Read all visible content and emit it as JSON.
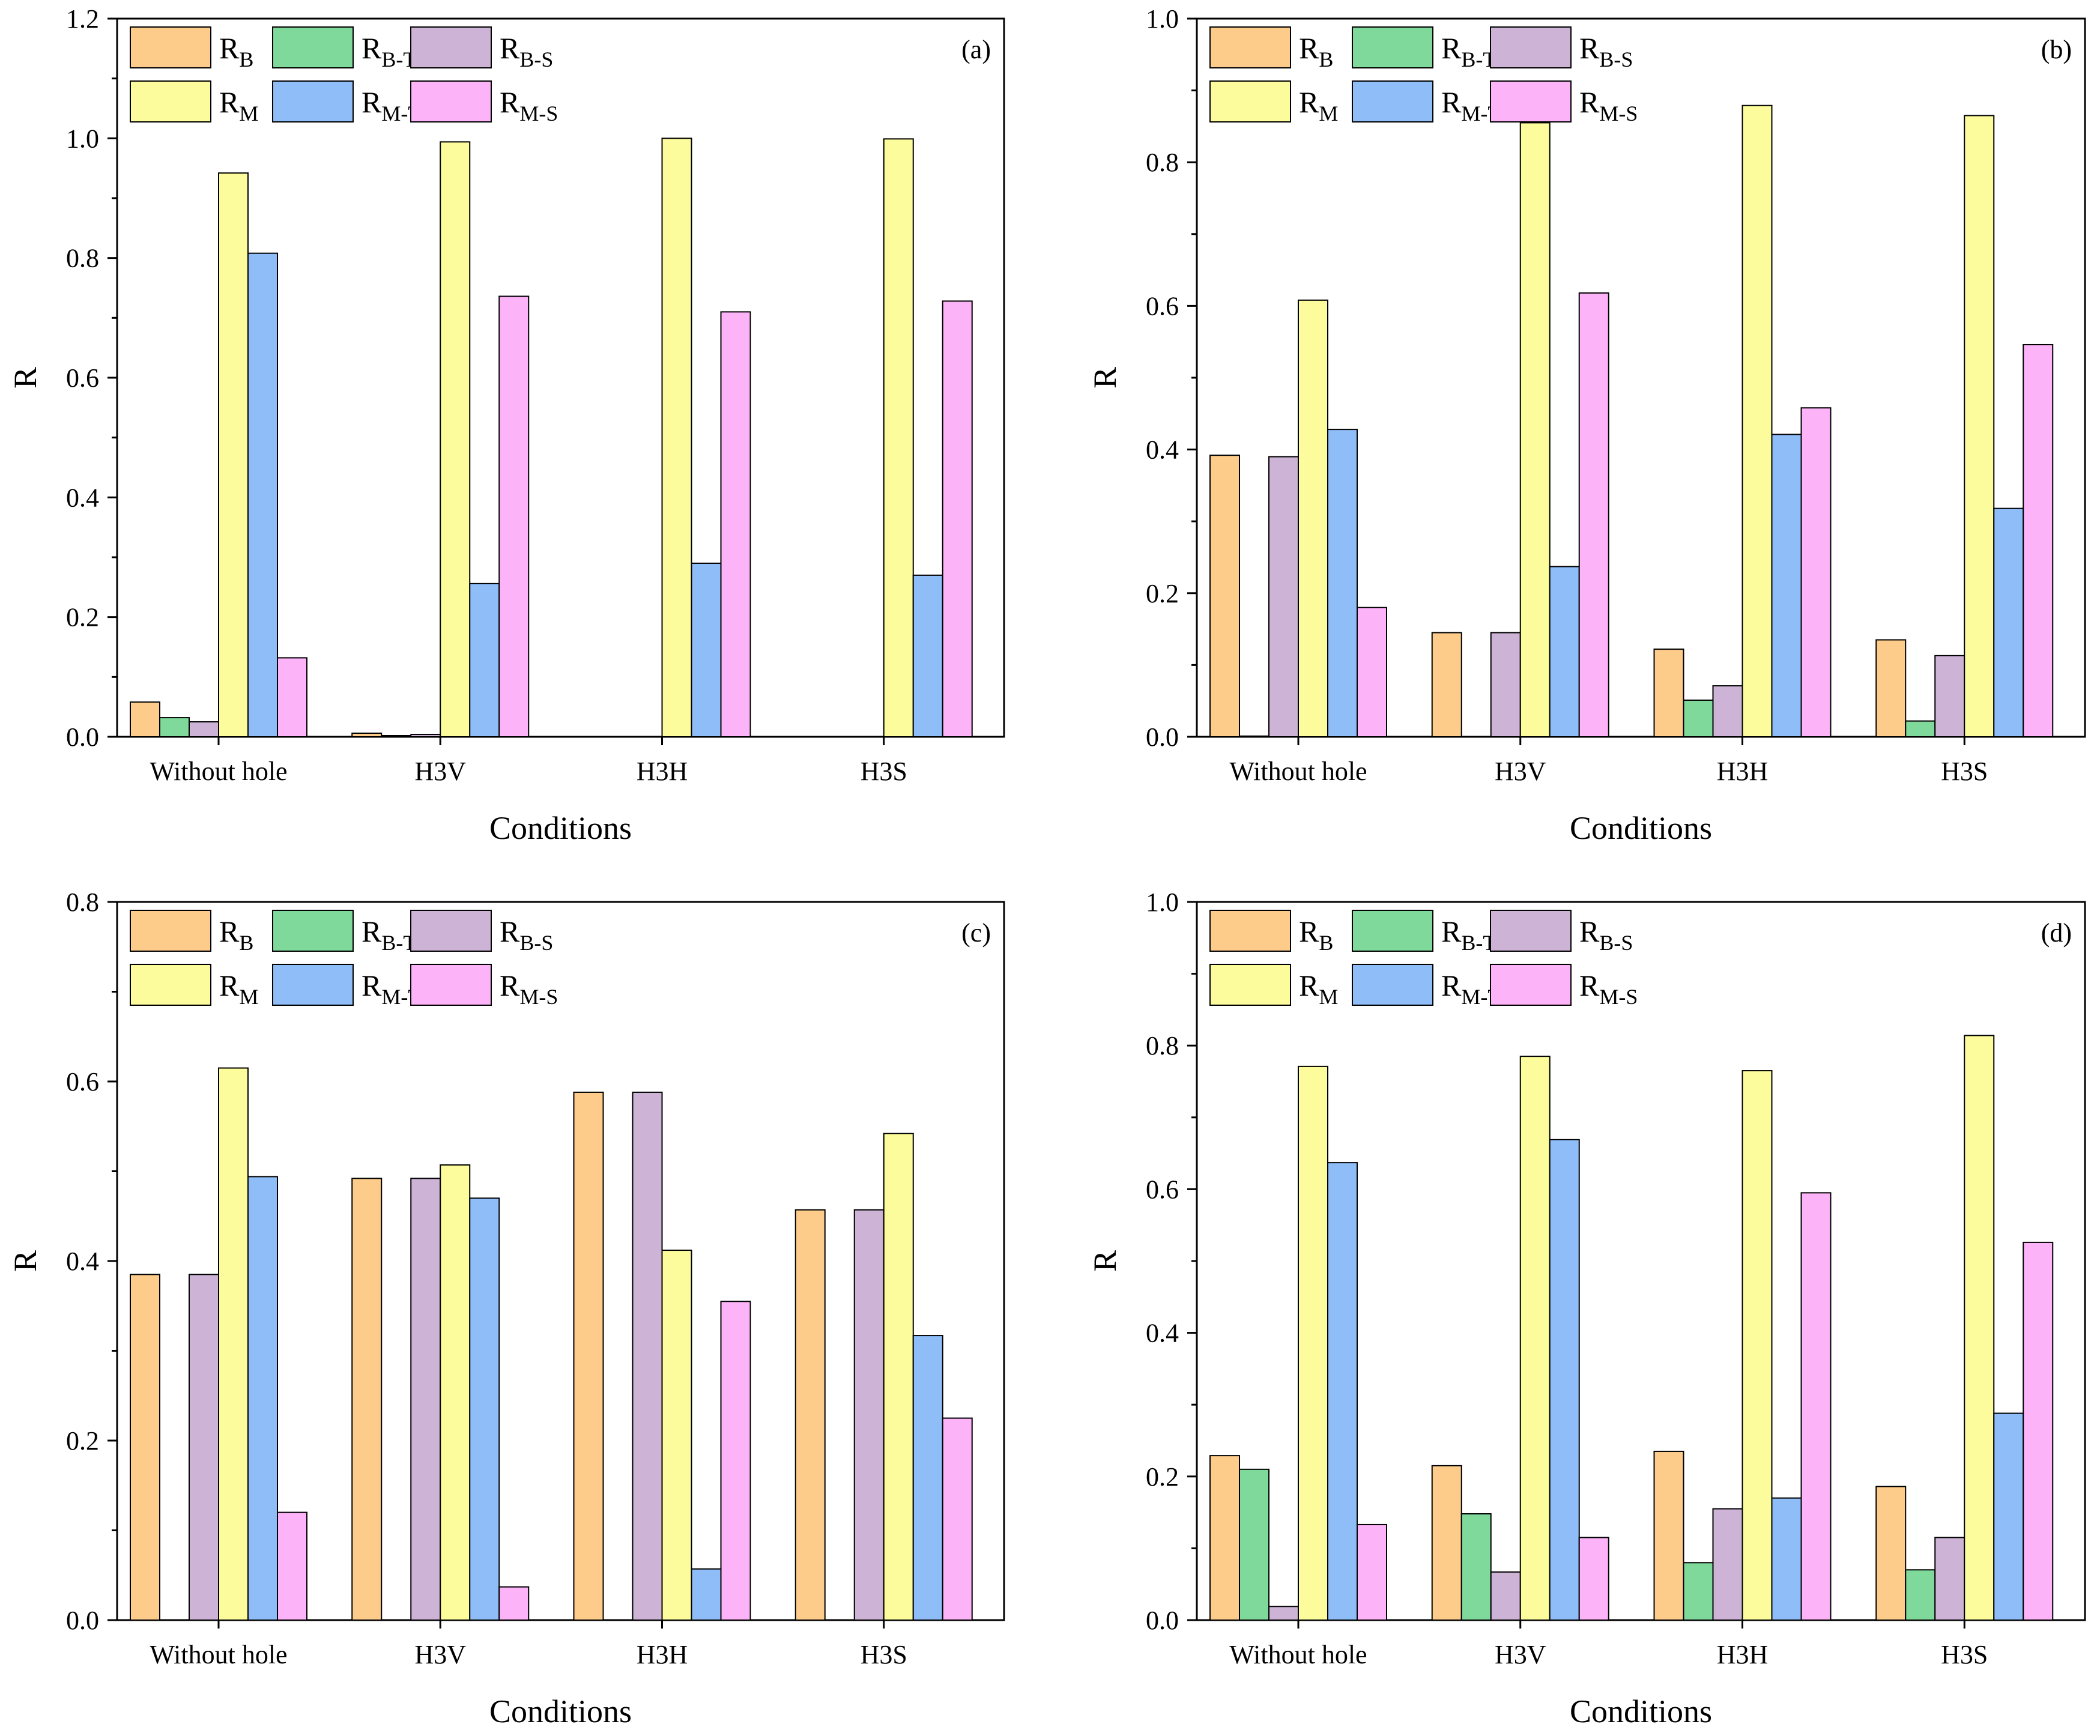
{
  "chart_data": [
    {
      "type": "bar",
      "panel": "(a)",
      "xlabel": "Conditions",
      "ylabel": "R",
      "categories": [
        "Without hole",
        "H3V",
        "H3H",
        "H3S"
      ],
      "ylim": [
        0,
        1.2
      ],
      "yticks": [
        "0.0",
        "0.2",
        "0.4",
        "0.6",
        "0.8",
        "1.0",
        "1.2"
      ],
      "series": [
        {
          "name": "R",
          "sub": "B",
          "values": [
            0.058,
            0.006,
            0.0,
            0.0
          ]
        },
        {
          "name": "R",
          "sub": "B-T",
          "values": [
            0.032,
            0.002,
            0.0,
            0.0
          ]
        },
        {
          "name": "R",
          "sub": "B-S",
          "values": [
            0.025,
            0.004,
            0.0,
            0.0
          ]
        },
        {
          "name": "R",
          "sub": "M",
          "values": [
            0.942,
            0.994,
            1.0,
            0.999
          ]
        },
        {
          "name": "R",
          "sub": "M-T",
          "values": [
            0.808,
            0.256,
            0.29,
            0.27
          ]
        },
        {
          "name": "R",
          "sub": "M-S",
          "values": [
            0.132,
            0.736,
            0.71,
            0.728
          ]
        }
      ]
    },
    {
      "type": "bar",
      "panel": "(b)",
      "xlabel": "Conditions",
      "ylabel": "R",
      "categories": [
        "Without hole",
        "H3V",
        "H3H",
        "H3S"
      ],
      "ylim": [
        0,
        1.0
      ],
      "yticks": [
        "0.0",
        "0.2",
        "0.4",
        "0.6",
        "0.8",
        "1.0"
      ],
      "series": [
        {
          "name": "R",
          "sub": "B",
          "values": [
            0.392,
            0.145,
            0.122,
            0.135
          ]
        },
        {
          "name": "R",
          "sub": "B-T",
          "values": [
            0.001,
            0.0,
            0.051,
            0.022
          ]
        },
        {
          "name": "R",
          "sub": "B-S",
          "values": [
            0.39,
            0.145,
            0.071,
            0.113
          ]
        },
        {
          "name": "R",
          "sub": "M",
          "values": [
            0.608,
            0.855,
            0.879,
            0.865
          ]
        },
        {
          "name": "R",
          "sub": "M-T",
          "values": [
            0.428,
            0.237,
            0.421,
            0.318
          ]
        },
        {
          "name": "R",
          "sub": "M-S",
          "values": [
            0.18,
            0.618,
            0.458,
            0.546
          ]
        }
      ]
    },
    {
      "type": "bar",
      "panel": "(c)",
      "xlabel": "Conditions",
      "ylabel": "R",
      "categories": [
        "Without hole",
        "H3V",
        "H3H",
        "H3S"
      ],
      "ylim": [
        0,
        0.8
      ],
      "yticks": [
        "0.0",
        "0.2",
        "0.4",
        "0.6",
        "0.8"
      ],
      "series": [
        {
          "name": "R",
          "sub": "B",
          "values": [
            0.385,
            0.492,
            0.588,
            0.457
          ]
        },
        {
          "name": "R",
          "sub": "B-T",
          "values": [
            0.0,
            0.0,
            0.0,
            0.0
          ]
        },
        {
          "name": "R",
          "sub": "B-S",
          "values": [
            0.385,
            0.492,
            0.588,
            0.457
          ]
        },
        {
          "name": "R",
          "sub": "M",
          "values": [
            0.615,
            0.507,
            0.412,
            0.542
          ]
        },
        {
          "name": "R",
          "sub": "M-T",
          "values": [
            0.494,
            0.47,
            0.057,
            0.317
          ]
        },
        {
          "name": "R",
          "sub": "M-S",
          "values": [
            0.12,
            0.037,
            0.355,
            0.225
          ]
        }
      ]
    },
    {
      "type": "bar",
      "panel": "(d)",
      "xlabel": "Conditions",
      "ylabel": "R",
      "categories": [
        "Without hole",
        "H3V",
        "H3H",
        "H3S"
      ],
      "ylim": [
        0,
        1.0
      ],
      "yticks": [
        "0.0",
        "0.2",
        "0.4",
        "0.6",
        "0.8",
        "1.0"
      ],
      "series": [
        {
          "name": "R",
          "sub": "B",
          "values": [
            0.229,
            0.215,
            0.235,
            0.186
          ]
        },
        {
          "name": "R",
          "sub": "B-T",
          "values": [
            0.21,
            0.148,
            0.08,
            0.07
          ]
        },
        {
          "name": "R",
          "sub": "B-S",
          "values": [
            0.019,
            0.067,
            0.155,
            0.115
          ]
        },
        {
          "name": "R",
          "sub": "M",
          "values": [
            0.771,
            0.785,
            0.765,
            0.814
          ]
        },
        {
          "name": "R",
          "sub": "M-T",
          "values": [
            0.637,
            0.669,
            0.17,
            0.288
          ]
        },
        {
          "name": "R",
          "sub": "M-S",
          "values": [
            0.133,
            0.115,
            0.595,
            0.526
          ]
        }
      ]
    }
  ],
  "colors": {
    "series_fills": [
      "#fdcb8a",
      "#7fd99a",
      "#cdb3d6",
      "#fcfc9c",
      "#8fbdf8",
      "#fdb3f8"
    ],
    "stroke": "#000000",
    "background": "#ffffff"
  }
}
